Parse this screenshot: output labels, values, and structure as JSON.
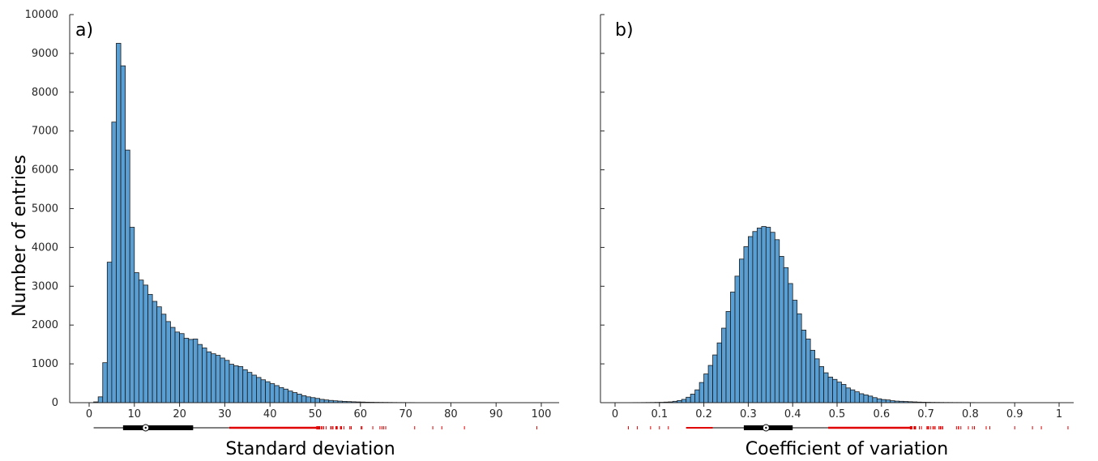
{
  "colors": {
    "bar_fill": "#5a9fd4",
    "bar_edge": "#1a1a1a",
    "outlier": "#e00000",
    "axis": "#262626"
  },
  "chart_data": [
    {
      "type": "bar",
      "panel_label": "a)",
      "xlabel": "Standard deviation",
      "ylabel": "Number of entries",
      "ylim": [
        0,
        10000
      ],
      "xlim": [
        -5,
        102
      ],
      "xticks": [
        0,
        10,
        20,
        30,
        40,
        50,
        60,
        70,
        80,
        90,
        100
      ],
      "xtick_labels": [
        "0",
        "10",
        "20",
        "30",
        "40",
        "50",
        "60",
        "70",
        "80",
        "90",
        "100"
      ],
      "yticks": [
        0,
        1000,
        2000,
        3000,
        4000,
        5000,
        6000,
        7000,
        8000,
        9000,
        10000
      ],
      "ytick_labels": [
        "0",
        "1000",
        "2000",
        "3000",
        "4000",
        "5000",
        "6000",
        "7000",
        "8000",
        "9000",
        "10000"
      ],
      "bin_start": 1,
      "bin_width": 1,
      "values": [
        20,
        150,
        1030,
        3620,
        7230,
        9260,
        8680,
        6510,
        4520,
        3350,
        3160,
        3030,
        2790,
        2610,
        2470,
        2280,
        2090,
        1940,
        1820,
        1780,
        1660,
        1630,
        1640,
        1500,
        1410,
        1310,
        1260,
        1220,
        1150,
        1090,
        990,
        950,
        930,
        850,
        780,
        710,
        650,
        590,
        540,
        490,
        440,
        390,
        350,
        300,
        260,
        220,
        180,
        150,
        130,
        110,
        85,
        70,
        58,
        48,
        40,
        33,
        28,
        23,
        19,
        16,
        13,
        11,
        9,
        8,
        7,
        6,
        5,
        4,
        4,
        3,
        3,
        2,
        2,
        2,
        2,
        1,
        1,
        1,
        1,
        1,
        1,
        1,
        1,
        1,
        1,
        1,
        1,
        1,
        1,
        1,
        1,
        1,
        1,
        1,
        1,
        1,
        1,
        1,
        1
      ],
      "boxplot": {
        "whisker_low": 1,
        "q1": 7.5,
        "median": 12.5,
        "q3": 23,
        "whisker_high": 31,
        "outlier_range": [
          31,
          66
        ]
      },
      "grid": false
    },
    {
      "type": "bar",
      "panel_label": "b)",
      "xlabel": "Coefficient of variation",
      "ylabel": "",
      "ylim": [
        0,
        10000
      ],
      "xlim": [
        -0.03,
        1.05
      ],
      "xticks": [
        0,
        0.1,
        0.2,
        0.3,
        0.4,
        0.5,
        0.6,
        0.7,
        0.8,
        0.9,
        1
      ],
      "xtick_labels": [
        "0",
        "0.1",
        "0.2",
        "0.3",
        "0.4",
        "0.5",
        "0.6",
        "0.7",
        "0.8",
        "0.9",
        "1"
      ],
      "yticks": [
        0,
        1000,
        2000,
        3000,
        4000,
        5000,
        6000,
        7000,
        8000,
        9000,
        10000
      ],
      "ytick_labels": [],
      "bin_start": 0.02,
      "bin_width": 0.01,
      "values": [
        2,
        2,
        3,
        3,
        4,
        5,
        6,
        8,
        10,
        15,
        20,
        35,
        55,
        85,
        140,
        220,
        330,
        520,
        740,
        960,
        1230,
        1540,
        1920,
        2350,
        2850,
        3260,
        3700,
        4020,
        4280,
        4410,
        4500,
        4540,
        4520,
        4390,
        4200,
        3770,
        3480,
        3070,
        2640,
        2290,
        1870,
        1640,
        1350,
        1130,
        930,
        770,
        660,
        600,
        530,
        470,
        380,
        330,
        280,
        230,
        200,
        170,
        130,
        100,
        80,
        70,
        50,
        40,
        35,
        30,
        25,
        20,
        15,
        12,
        10,
        8,
        7,
        6,
        5,
        5,
        4,
        4,
        3,
        3,
        3,
        2,
        2,
        2,
        2,
        2,
        2,
        2,
        2,
        2,
        2,
        2,
        2,
        2,
        2,
        2,
        2,
        2,
        2,
        2,
        2,
        2,
        2
      ],
      "boxplot": {
        "whisker_low": 0.22,
        "q1": 0.29,
        "median": 0.34,
        "q3": 0.4,
        "whisker_high": 0.48,
        "outlier_range_low": [
          0.13,
          0.22
        ],
        "outlier_range_high": [
          0.48,
          0.85
        ]
      },
      "grid": false
    }
  ]
}
